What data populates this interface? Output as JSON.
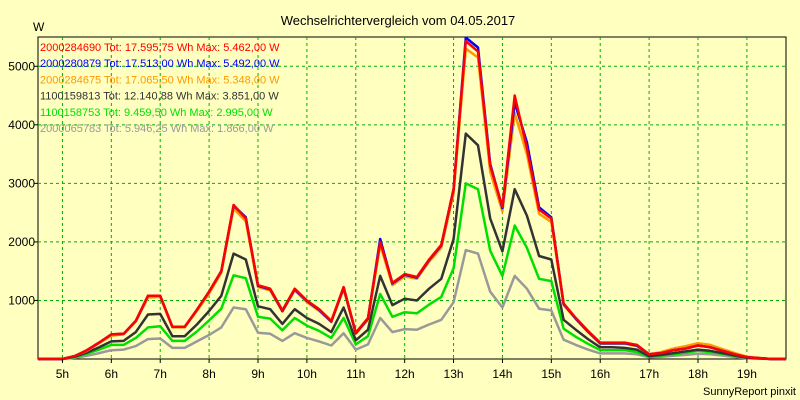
{
  "chart_data": {
    "type": "line",
    "title": "Wechselrichtervergleich vom 04.05.2017",
    "ylabel": "W",
    "footer": "SunnyReport pinxit",
    "ylim": [
      0,
      5500
    ],
    "y_ticks": [
      1000,
      2000,
      3000,
      4000,
      5000
    ],
    "x_range": [
      4.5,
      19.8
    ],
    "x_ticks": [
      5,
      6,
      7,
      8,
      9,
      10,
      11,
      12,
      13,
      14,
      15,
      16,
      17,
      18,
      19
    ],
    "x_tick_labels": [
      "5h",
      "6h",
      "7h",
      "8h",
      "9h",
      "10h",
      "11h",
      "12h",
      "13h",
      "14h",
      "15h",
      "16h",
      "17h",
      "18h",
      "19h"
    ],
    "grid": true,
    "legend_position": "top-left",
    "x": [
      4.5,
      5.0,
      5.25,
      5.5,
      5.75,
      6.0,
      6.25,
      6.5,
      6.75,
      7.0,
      7.25,
      7.5,
      7.75,
      8.0,
      8.25,
      8.5,
      8.75,
      9.0,
      9.25,
      9.5,
      9.75,
      10.0,
      10.25,
      10.5,
      10.75,
      11.0,
      11.25,
      11.5,
      11.75,
      12.0,
      12.25,
      12.5,
      12.75,
      13.0,
      13.25,
      13.5,
      13.75,
      14.0,
      14.25,
      14.5,
      14.75,
      15.0,
      15.25,
      15.5,
      15.75,
      16.0,
      16.25,
      16.5,
      16.75,
      17.0,
      17.25,
      17.5,
      17.75,
      18.0,
      18.25,
      18.5,
      18.75,
      19.0,
      19.5,
      19.8
    ],
    "series": [
      {
        "name": "2000284690",
        "legend": "2000284690 Tot: 17.595,75 Wh Max: 5.462,00 W",
        "color": "#ff0000",
        "values": [
          0,
          0,
          50,
          150,
          280,
          420,
          430,
          650,
          1080,
          1080,
          550,
          550,
          840,
          1150,
          1500,
          2630,
          2400,
          1260,
          1200,
          830,
          1200,
          1000,
          850,
          650,
          1230,
          450,
          700,
          2000,
          1300,
          1450,
          1400,
          1700,
          1950,
          2900,
          5430,
          5250,
          3300,
          2600,
          4500,
          3600,
          2550,
          2400,
          950,
          700,
          480,
          280,
          280,
          280,
          240,
          80,
          100,
          150,
          180,
          230,
          200,
          140,
          80,
          30,
          0,
          0
        ]
      },
      {
        "name": "2000280879",
        "legend": "2000280879 Tot: 17.513,00 Wh Max: 5.492,00 W",
        "color": "#0000ff",
        "values": [
          0,
          0,
          50,
          150,
          280,
          420,
          430,
          650,
          1080,
          1080,
          550,
          550,
          840,
          1150,
          1500,
          2620,
          2420,
          1250,
          1190,
          820,
          1190,
          990,
          840,
          640,
          1220,
          440,
          690,
          2050,
          1290,
          1440,
          1390,
          1690,
          1940,
          2900,
          5490,
          5320,
          3330,
          2580,
          4380,
          3700,
          2590,
          2420,
          940,
          690,
          470,
          270,
          270,
          270,
          230,
          80,
          100,
          150,
          180,
          230,
          200,
          140,
          80,
          30,
          0,
          0
        ]
      },
      {
        "name": "2000284675",
        "legend": "2000284675 Tot: 17.065,50 Wh Max: 5.348,00 W",
        "color": "#ff9900",
        "values": [
          0,
          0,
          50,
          140,
          270,
          400,
          420,
          640,
          1050,
          1060,
          540,
          540,
          820,
          1120,
          1470,
          2570,
          2350,
          1230,
          1170,
          810,
          1170,
          970,
          820,
          630,
          1190,
          430,
          670,
          1950,
          1260,
          1410,
          1370,
          1660,
          1900,
          2830,
          5300,
          5150,
          3200,
          2520,
          4200,
          3500,
          2480,
          2340,
          920,
          680,
          460,
          260,
          260,
          260,
          220,
          80,
          120,
          180,
          220,
          270,
          240,
          170,
          100,
          40,
          0,
          0
        ]
      },
      {
        "name": "1100159813",
        "legend": "1100159813 Tot: 12.140,88 Wh Max: 3.851,00 W",
        "color": "#333333",
        "values": [
          0,
          0,
          40,
          110,
          200,
          300,
          310,
          460,
          760,
          770,
          390,
          390,
          590,
          820,
          1080,
          1800,
          1700,
          900,
          850,
          600,
          850,
          700,
          600,
          460,
          880,
          320,
          500,
          1420,
          920,
          1030,
          1000,
          1200,
          1370,
          2050,
          3850,
          3650,
          2400,
          1840,
          2900,
          2450,
          1760,
          1700,
          670,
          500,
          340,
          200,
          200,
          190,
          160,
          50,
          70,
          100,
          130,
          160,
          140,
          100,
          60,
          20,
          0,
          0
        ]
      },
      {
        "name": "1100158753",
        "legend": "1100158753 Tot: 9.459,50 Wh Max: 2.995,00 W",
        "color": "#00e000",
        "values": [
          0,
          0,
          30,
          90,
          160,
          240,
          240,
          360,
          540,
          560,
          310,
          310,
          470,
          660,
          860,
          1430,
          1380,
          720,
          690,
          490,
          700,
          570,
          480,
          360,
          700,
          250,
          390,
          1110,
          720,
          800,
          780,
          930,
          1060,
          1550,
          3000,
          2900,
          1850,
          1420,
          2280,
          1900,
          1370,
          1330,
          520,
          380,
          260,
          150,
          150,
          150,
          120,
          40,
          60,
          80,
          110,
          140,
          120,
          90,
          50,
          20,
          0,
          0
        ]
      },
      {
        "name": "2000065783",
        "legend": "2000065783 Tot: 5.946,25 Wh Max: 1.866,00 W",
        "color": "#999999",
        "values": [
          0,
          0,
          20,
          55,
          100,
          150,
          160,
          220,
          340,
          350,
          190,
          190,
          300,
          410,
          540,
          880,
          850,
          450,
          430,
          310,
          440,
          360,
          300,
          230,
          440,
          160,
          250,
          700,
          460,
          510,
          500,
          590,
          670,
          970,
          1860,
          1800,
          1150,
          880,
          1420,
          1200,
          860,
          830,
          330,
          240,
          160,
          95,
          95,
          95,
          80,
          30,
          40,
          55,
          70,
          90,
          80,
          60,
          35,
          12,
          0,
          0
        ]
      }
    ]
  }
}
